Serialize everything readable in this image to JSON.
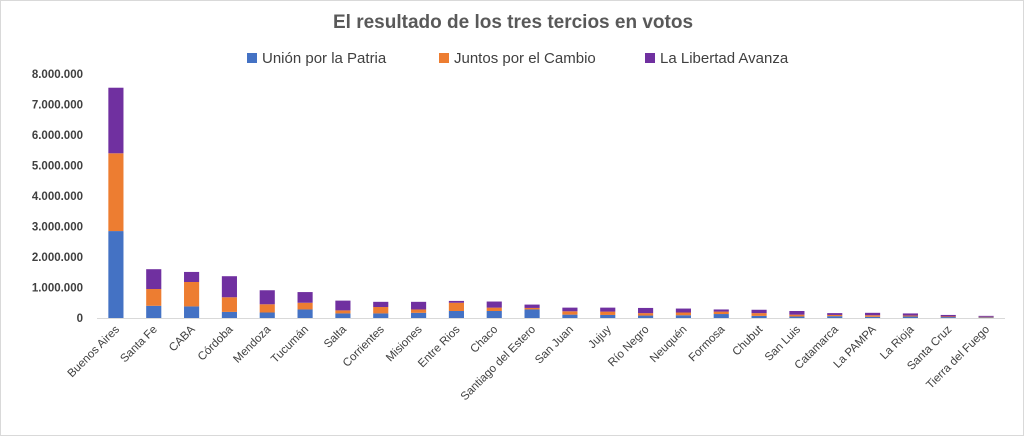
{
  "chart_data": {
    "type": "bar",
    "stacked": true,
    "title": "El resultado de los tres tercios en votos",
    "legend_position": "top",
    "grid": false,
    "ylim": [
      0,
      8000000
    ],
    "y_ticks": [
      "0",
      "1.000.000",
      "2.000.000",
      "3.000.000",
      "4.000.000",
      "5.000.000",
      "6.000.000",
      "7.000.000",
      "8.000.000"
    ],
    "categories": [
      "Buenos Aires",
      "Santa Fe",
      "CABA",
      "Córdoba",
      "Mendoza",
      "Tucumán",
      "Salta",
      "Corrientes",
      "Misiones",
      "Entre Rios",
      "Chaco",
      "Santiago del Estero",
      "San Juan",
      "Jujuy",
      "Río Negro",
      "Neuquén",
      "Formosa",
      "Chubut",
      "San Luis",
      "Catamarca",
      "La  PAMPA",
      "La Rioja",
      "Santa Cruz",
      "Tierra del Fuego"
    ],
    "series": [
      {
        "name": "Unión por la Patria",
        "color": "#4472c4",
        "values": [
          2850000,
          400000,
          380000,
          200000,
          180000,
          280000,
          150000,
          150000,
          170000,
          230000,
          230000,
          280000,
          110000,
          100000,
          80000,
          90000,
          130000,
          70000,
          50000,
          60000,
          40000,
          50000,
          30000,
          20000
        ]
      },
      {
        "name": "Juntos por el Cambio",
        "color": "#ed7d31",
        "values": [
          2550000,
          550000,
          800000,
          480000,
          270000,
          220000,
          100000,
          210000,
          110000,
          270000,
          110000,
          50000,
          110000,
          110000,
          80000,
          90000,
          80000,
          90000,
          60000,
          40000,
          50000,
          30000,
          20000,
          20000
        ]
      },
      {
        "name": "La Libertad Avanza",
        "color": "#7030a0",
        "values": [
          2150000,
          650000,
          330000,
          690000,
          460000,
          350000,
          320000,
          170000,
          250000,
          60000,
          200000,
          110000,
          120000,
          130000,
          170000,
          130000,
          70000,
          110000,
          120000,
          60000,
          80000,
          70000,
          50000,
          30000
        ]
      }
    ]
  }
}
